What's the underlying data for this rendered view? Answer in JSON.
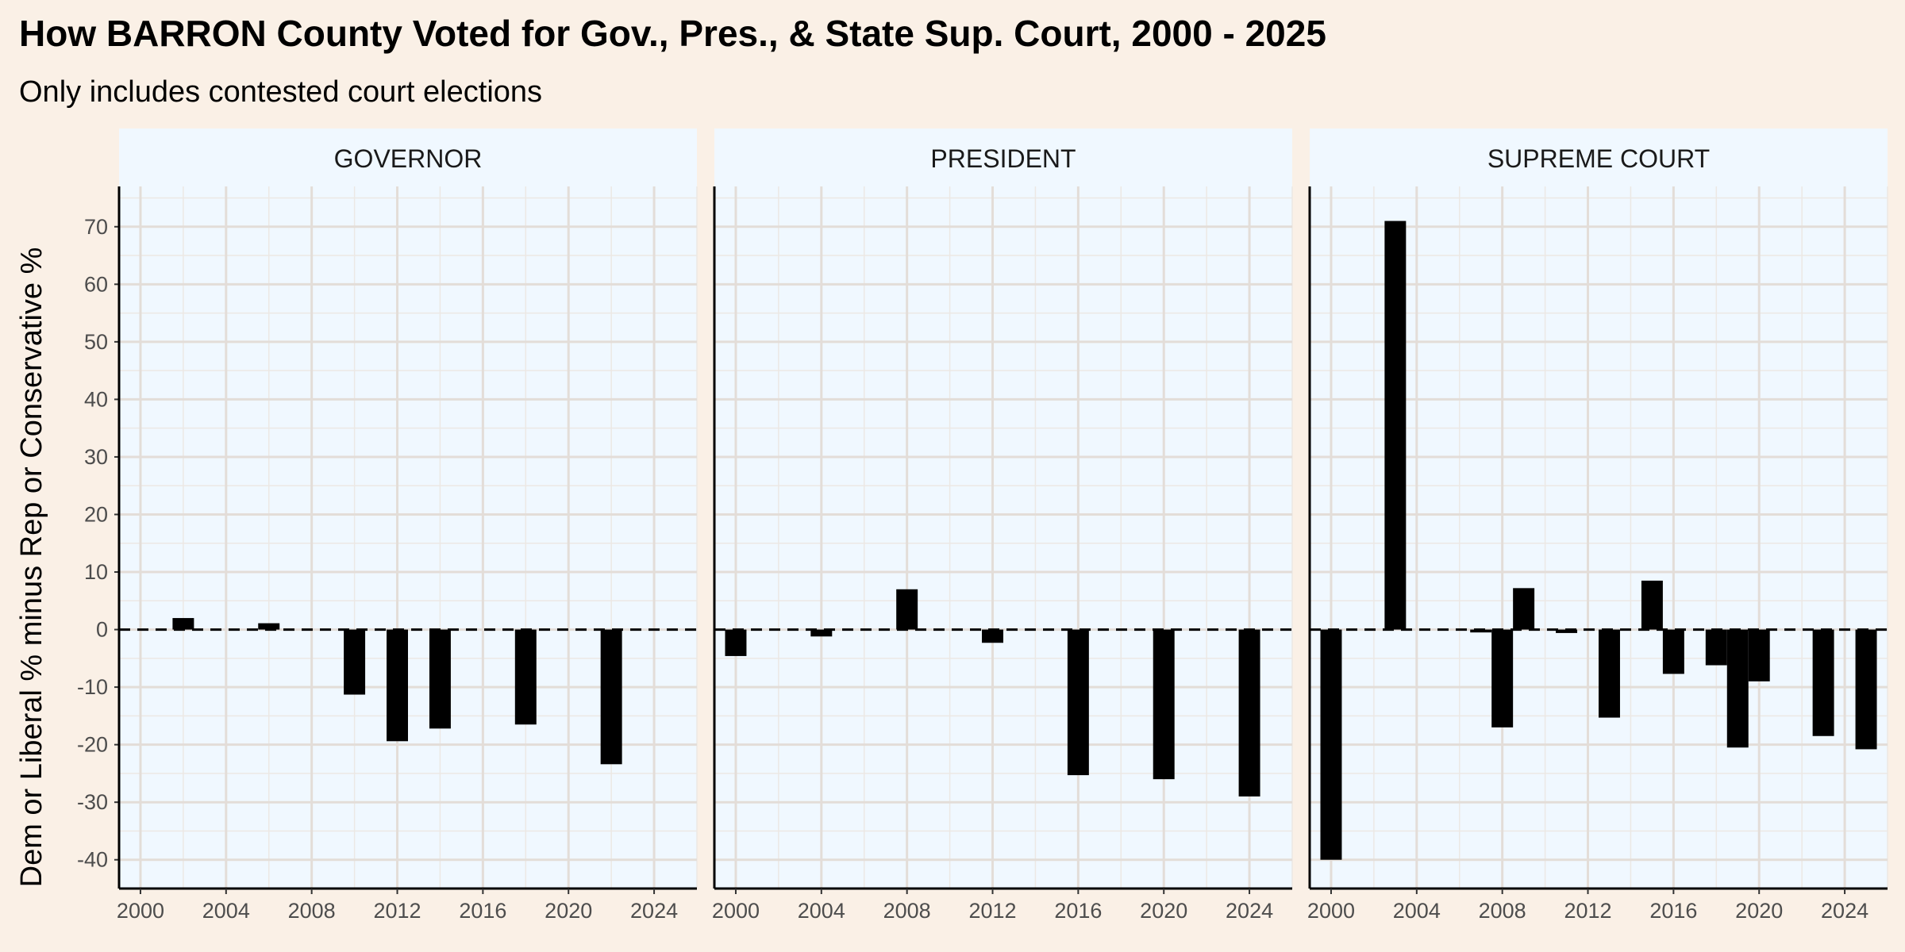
{
  "chart_data": {
    "type": "bar",
    "title": "How BARRON County Voted for Gov., Pres., & State Sup. Court, 2000 - 2025",
    "subtitle": "Only includes contested court elections",
    "xlabel": "",
    "ylabel": "Dem or Liberal % minus Rep or Conservative %",
    "xlim": [
      1999,
      2026
    ],
    "ylim": [
      -45,
      77
    ],
    "x_ticks": [
      2000,
      2004,
      2008,
      2012,
      2016,
      2020,
      2024
    ],
    "y_ticks": [
      -40,
      -30,
      -20,
      -10,
      0,
      10,
      20,
      30,
      40,
      50,
      60,
      70
    ],
    "grid": true,
    "reference_line": 0,
    "bar_color": "#000000",
    "panel_background": "#f0f8ff",
    "page_background": "#faf0e6",
    "facets": [
      {
        "name": "GOVERNOR",
        "points": [
          {
            "x": 2002,
            "y": 2.0
          },
          {
            "x": 2006,
            "y": 1.1
          },
          {
            "x": 2010,
            "y": -11.3
          },
          {
            "x": 2012,
            "y": -19.4
          },
          {
            "x": 2014,
            "y": -17.2
          },
          {
            "x": 2018,
            "y": -16.5
          },
          {
            "x": 2022,
            "y": -23.4
          }
        ]
      },
      {
        "name": "PRESIDENT",
        "points": [
          {
            "x": 2000,
            "y": -4.6
          },
          {
            "x": 2004,
            "y": -1.2
          },
          {
            "x": 2008,
            "y": 7.0
          },
          {
            "x": 2012,
            "y": -2.3
          },
          {
            "x": 2016,
            "y": -25.3
          },
          {
            "x": 2020,
            "y": -26.0
          },
          {
            "x": 2024,
            "y": -29.0
          }
        ]
      },
      {
        "name": "SUPREME COURT",
        "points": [
          {
            "x": 2000,
            "y": -40.0
          },
          {
            "x": 2003,
            "y": 71.0
          },
          {
            "x": 2007,
            "y": -0.5
          },
          {
            "x": 2008,
            "y": -17.0
          },
          {
            "x": 2009,
            "y": 7.2
          },
          {
            "x": 2011,
            "y": -0.6
          },
          {
            "x": 2013,
            "y": -15.3
          },
          {
            "x": 2015,
            "y": 8.5
          },
          {
            "x": 2016,
            "y": -7.7
          },
          {
            "x": 2018,
            "y": -6.2
          },
          {
            "x": 2019,
            "y": -20.5
          },
          {
            "x": 2020,
            "y": -9.0
          },
          {
            "x": 2023,
            "y": -18.5
          },
          {
            "x": 2025,
            "y": -20.8
          }
        ]
      }
    ]
  }
}
